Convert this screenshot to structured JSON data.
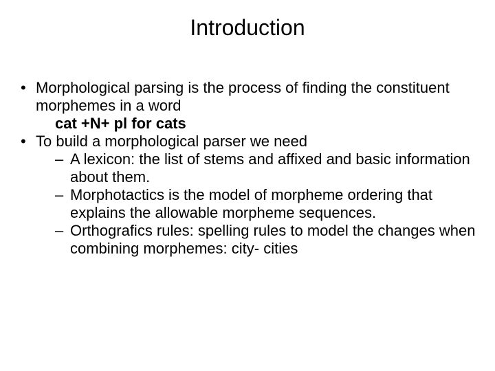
{
  "title": "Introduction",
  "bullets": {
    "b1": {
      "text": "Morphological parsing is the process of finding the constituent morphemes in a word",
      "example": "cat +N+ pl for cats"
    },
    "b2": {
      "text": "To build a morphological parser we need",
      "sub": {
        "s1": "A lexicon: the list of stems and affixed and basic information about them.",
        "s2": "Morphotactics is the model of morpheme ordering that explains the allowable morpheme sequences.",
        "s3": "Orthografics rules: spelling rules to model the changes when combining morphemes: city- cities"
      }
    }
  },
  "style": {
    "background_color": "#ffffff",
    "text_color": "#000000",
    "title_fontsize": 32,
    "body_fontsize": 22,
    "font_family": "Arial"
  }
}
